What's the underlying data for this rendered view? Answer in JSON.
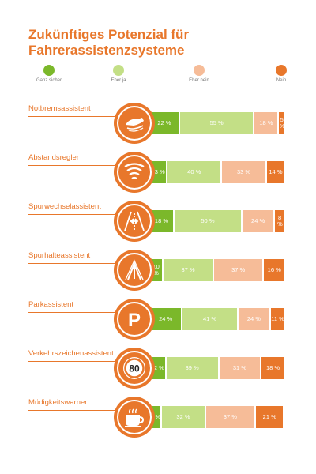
{
  "title_line1": "Zukünftiges Potenzial für",
  "title_line2": "Fahrerassistenzsysteme",
  "colors": {
    "accent": "#e8772b",
    "ganz_sicher": "#7bb82a",
    "eher_ja": "#c3df86",
    "eher_nein": "#f6bc98",
    "nein": "#e8772b"
  },
  "legend": [
    {
      "label": "Ganz sicher",
      "color": "#7bb82a"
    },
    {
      "label": "Eher ja",
      "color": "#c3df86"
    },
    {
      "label": "Eher nein",
      "color": "#f6bc98"
    },
    {
      "label": "Nein",
      "color": "#e8772b"
    }
  ],
  "rows": [
    {
      "label": "Notbremsassistent",
      "icon": "brake-shoe-icon",
      "values": [
        "22 %",
        "55 %",
        "18 %",
        "5 %"
      ]
    },
    {
      "label": "Abstandsregler",
      "icon": "distance-radar-icon",
      "values": [
        "13 %",
        "40 %",
        "33 %",
        "14 %"
      ]
    },
    {
      "label": "Spurwechselassistent",
      "icon": "lane-change-icon",
      "values": [
        "18 %",
        "50 %",
        "24 %",
        "8 %"
      ]
    },
    {
      "label": "Spurhalteassistent",
      "icon": "lane-keeping-icon",
      "values": [
        "10 %",
        "37 %",
        "37 %",
        "16 %"
      ]
    },
    {
      "label": "Parkassistent",
      "icon": "parking-icon",
      "values": [
        "24 %",
        "41 %",
        "24 %",
        "11 %"
      ]
    },
    {
      "label": "Verkehrszeichenassistent",
      "icon": "speed-sign-icon",
      "values": [
        "12 %",
        "39 %",
        "31 %",
        "18 %"
      ]
    },
    {
      "label": "Müdigkeitswarner",
      "icon": "coffee-cup-icon",
      "values": [
        "9 %",
        "32 %",
        "37 %",
        "21 %"
      ]
    }
  ],
  "speed_sign_text": "80",
  "chart_data": {
    "type": "bar",
    "orientation": "horizontal",
    "stacked": true,
    "title": "Zukünftiges Potenzial für Fahrerassistenzsysteme",
    "categories": [
      "Notbremsassistent",
      "Abstandsregler",
      "Spurwechselassistent",
      "Spurhalteassistent",
      "Parkassistent",
      "Verkehrszeichenassistent",
      "Müdigkeitswarner"
    ],
    "series": [
      {
        "name": "Ganz sicher",
        "values": [
          22,
          13,
          18,
          10,
          24,
          12,
          9
        ]
      },
      {
        "name": "Eher ja",
        "values": [
          55,
          40,
          50,
          37,
          41,
          39,
          32
        ]
      },
      {
        "name": "Eher nein",
        "values": [
          18,
          33,
          24,
          37,
          24,
          31,
          37
        ]
      },
      {
        "name": "Nein",
        "values": [
          5,
          14,
          8,
          16,
          11,
          18,
          21
        ]
      }
    ],
    "unit": "%",
    "legend_position": "top",
    "grid": false
  }
}
